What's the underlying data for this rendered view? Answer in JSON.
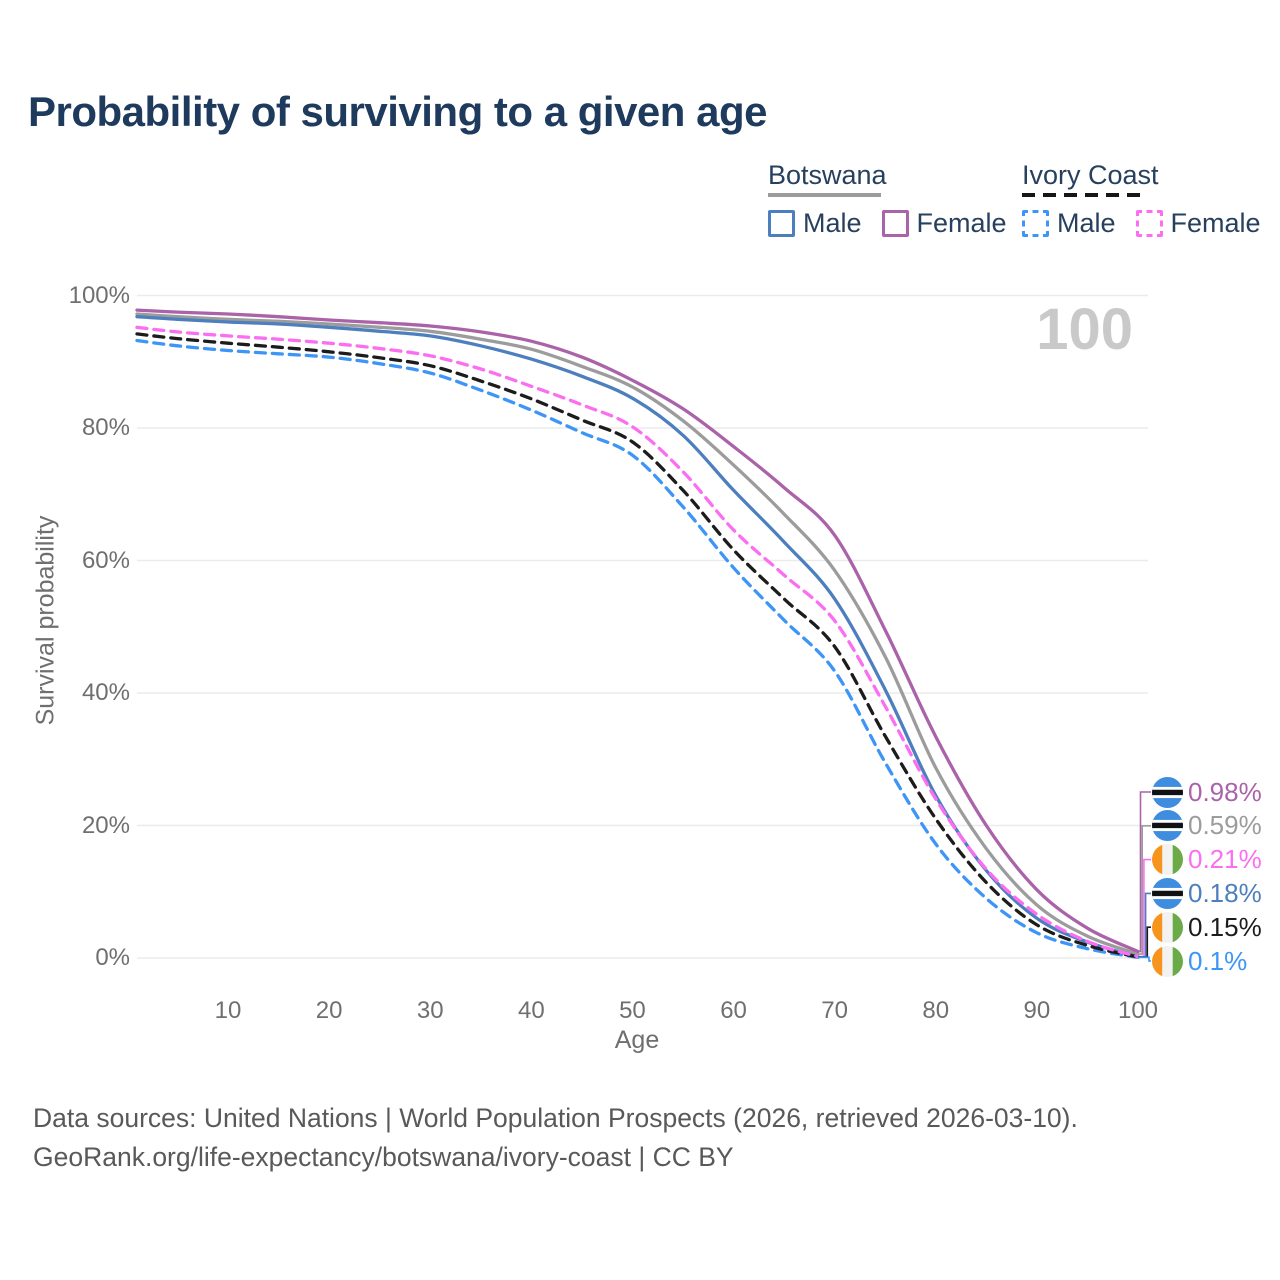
{
  "title": "Probability of surviving to a given age",
  "hover_age_label": "100",
  "legend": {
    "groups": [
      {
        "name": "Botswana",
        "line_style": "solid",
        "underline_color": "#9c9c9c",
        "items": [
          {
            "label": "Male",
            "color": "#4d7fbe"
          },
          {
            "label": "Female",
            "color": "#aa62a8"
          }
        ]
      },
      {
        "name": "Ivory Coast",
        "line_style": "dashed",
        "underline_color": "#161616",
        "items": [
          {
            "label": "Male",
            "color": "#3c95f7"
          },
          {
            "label": "Female",
            "color": "#fb6ef2"
          }
        ]
      }
    ]
  },
  "chart_data": {
    "type": "line",
    "title": "Probability of surviving to a given age",
    "xlabel": "Age",
    "ylabel": "Survival probability",
    "xlim": [
      1,
      100
    ],
    "ylim": [
      0,
      100
    ],
    "xticks": [
      10,
      20,
      30,
      40,
      50,
      60,
      70,
      80,
      90,
      100
    ],
    "yticks": [
      0,
      20,
      40,
      60,
      80,
      100
    ],
    "ytick_suffix": "%",
    "grid": "horizontal",
    "legend_position": "top-right",
    "x": [
      1,
      5,
      10,
      15,
      20,
      25,
      30,
      35,
      40,
      45,
      50,
      55,
      60,
      65,
      70,
      75,
      80,
      85,
      90,
      95,
      100
    ],
    "series": [
      {
        "name": "Botswana Both sexes",
        "country": "Botswana",
        "group": "Both sexes",
        "color": "#9c9c9c",
        "dash": "solid",
        "flag": "botswana",
        "end_label": "0.59%",
        "values": [
          97.2,
          96.8,
          96.4,
          96.1,
          95.7,
          95.2,
          94.6,
          93.4,
          91.9,
          89.3,
          86.2,
          81.1,
          74.4,
          67.0,
          58.5,
          45.5,
          28.7,
          16.5,
          8.0,
          3.3,
          0.59
        ]
      },
      {
        "name": "Botswana Male",
        "country": "Botswana",
        "group": "Male",
        "color": "#4d7fbe",
        "dash": "solid",
        "flag": "botswana",
        "end_label": "0.18%",
        "values": [
          96.8,
          96.4,
          96.0,
          95.7,
          95.2,
          94.6,
          93.9,
          92.4,
          90.4,
          87.8,
          84.5,
          78.9,
          70.6,
          62.8,
          54.2,
          40.5,
          24.5,
          13.2,
          6.0,
          2.4,
          0.18
        ]
      },
      {
        "name": "Botswana Female",
        "country": "Botswana",
        "group": "Female",
        "color": "#aa62a8",
        "dash": "solid",
        "flag": "botswana",
        "end_label": "0.98%",
        "values": [
          97.8,
          97.5,
          97.2,
          96.8,
          96.3,
          95.9,
          95.4,
          94.5,
          93.1,
          90.7,
          87.2,
          82.9,
          77.2,
          71.0,
          63.8,
          49.5,
          33.4,
          20.0,
          10.3,
          4.5,
          0.98
        ]
      },
      {
        "name": "Ivory Coast Male",
        "country": "Ivory Coast",
        "group": "Male",
        "color": "#3c95f7",
        "dash": "dashed",
        "flag": "ivory-coast",
        "end_label": "0.1%",
        "values": [
          93.2,
          92.4,
          91.7,
          91.2,
          90.7,
          89.7,
          88.3,
          85.7,
          82.7,
          79.3,
          75.9,
          68.1,
          58.9,
          51.0,
          43.3,
          29.5,
          17.2,
          9.0,
          3.8,
          1.4,
          0.1
        ]
      },
      {
        "name": "Ivory Coast Both sexes",
        "country": "Ivory Coast",
        "group": "Both sexes",
        "color": "#1c1c1c",
        "dash": "dashed",
        "flag": "ivory-coast",
        "end_label": "0.15%",
        "values": [
          94.2,
          93.5,
          92.8,
          92.2,
          91.5,
          90.6,
          89.4,
          87.1,
          84.4,
          81.2,
          77.9,
          70.6,
          61.6,
          54.2,
          47.0,
          33.5,
          21.0,
          11.4,
          5.0,
          1.9,
          0.15
        ]
      },
      {
        "name": "Ivory Coast Female",
        "country": "Ivory Coast",
        "group": "Female",
        "color": "#fb6ef2",
        "dash": "dashed",
        "flag": "ivory-coast",
        "end_label": "0.21%",
        "values": [
          95.2,
          94.5,
          93.9,
          93.4,
          92.8,
          92.0,
          90.9,
          88.9,
          86.3,
          83.5,
          80.2,
          73.4,
          64.6,
          57.8,
          50.9,
          38.0,
          24.0,
          13.4,
          6.6,
          2.5,
          0.21
        ]
      }
    ]
  },
  "flag_colors": {
    "botswana": {
      "base": "#3f8dde",
      "stripe": "#111111",
      "stripe_edge": "#ffffff"
    },
    "ivory_coast": {
      "left": "#f7941e",
      "middle": "#f2f2f2",
      "right": "#6aaa47"
    }
  },
  "footer": {
    "line1": "Data sources: United Nations | World Population Prospects (2026, retrieved 2026-03-10).",
    "line2": "GeoRank.org/life-expectancy/botswana/ivory-coast | CC BY"
  }
}
